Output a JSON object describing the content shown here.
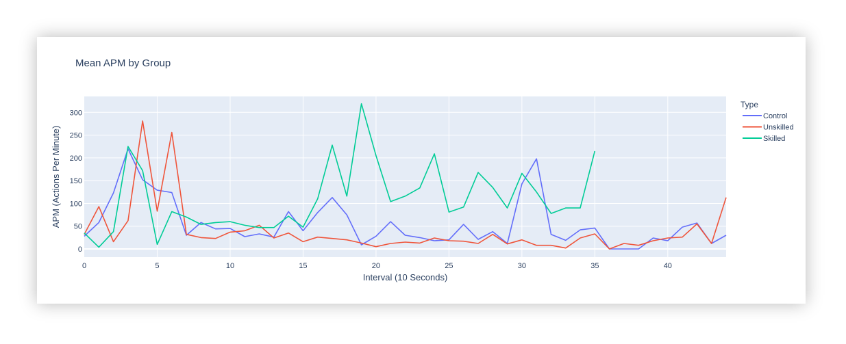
{
  "chart_data": {
    "type": "line",
    "title": "Mean APM by Group",
    "xlabel": "Interval (10 Seconds)",
    "ylabel": "APM (Actions Per Minute)",
    "xlim": [
      0,
      44
    ],
    "ylim": [
      -18,
      335
    ],
    "x_ticks": [
      0,
      5,
      10,
      15,
      20,
      25,
      30,
      35,
      40
    ],
    "y_ticks": [
      0,
      50,
      100,
      150,
      200,
      250,
      300
    ],
    "grid": true,
    "plot_bgcolor": "#e5ecf6",
    "legend": {
      "title": "Type",
      "placement": "top-right, outside plot"
    },
    "series": [
      {
        "name": "Control",
        "color": "#636efa",
        "x": [
          0,
          1,
          2,
          3,
          4,
          5,
          6,
          7,
          8,
          9,
          10,
          11,
          12,
          13,
          14,
          15,
          16,
          17,
          18,
          19,
          20,
          21,
          22,
          23,
          24,
          25,
          26,
          27,
          28,
          29,
          30,
          31,
          32,
          33,
          34,
          35,
          36,
          37,
          38,
          39,
          40,
          41,
          42,
          43,
          44
        ],
        "values": [
          28,
          58,
          123,
          220,
          152,
          129,
          124,
          30,
          58,
          44,
          45,
          27,
          33,
          26,
          82,
          40,
          80,
          113,
          75,
          9,
          28,
          60,
          30,
          25,
          18,
          20,
          54,
          21,
          38,
          12,
          143,
          198,
          32,
          19,
          42,
          46,
          0,
          0,
          0,
          24,
          18,
          48,
          57,
          12,
          30
        ]
      },
      {
        "name": "Unskilled",
        "color": "#ef553b",
        "x": [
          0,
          1,
          2,
          3,
          4,
          5,
          6,
          7,
          8,
          9,
          10,
          11,
          12,
          13,
          14,
          15,
          16,
          17,
          18,
          19,
          20,
          21,
          22,
          23,
          24,
          25,
          26,
          27,
          28,
          29,
          30,
          31,
          32,
          33,
          34,
          35,
          36,
          37,
          38,
          39,
          40,
          41,
          42,
          43,
          44
        ],
        "values": [
          32,
          93,
          16,
          62,
          281,
          83,
          256,
          32,
          25,
          23,
          37,
          40,
          52,
          24,
          35,
          16,
          26,
          23,
          20,
          13,
          5,
          12,
          15,
          13,
          24,
          18,
          17,
          12,
          32,
          11,
          20,
          8,
          8,
          2,
          24,
          33,
          0,
          12,
          8,
          18,
          24,
          26,
          55,
          12,
          113
        ]
      },
      {
        "name": "Skilled",
        "color": "#00cc96",
        "x": [
          0,
          1,
          2,
          3,
          4,
          5,
          6,
          7,
          8,
          9,
          10,
          11,
          12,
          13,
          14,
          15,
          16,
          17,
          18,
          19,
          20,
          21,
          22,
          23,
          24,
          25,
          26,
          27,
          28,
          29,
          30,
          31,
          32,
          33,
          34,
          35
        ],
        "values": [
          35,
          4,
          38,
          225,
          172,
          10,
          82,
          70,
          54,
          58,
          60,
          52,
          47,
          47,
          72,
          48,
          110,
          228,
          116,
          319,
          205,
          104,
          116,
          134,
          209,
          81,
          92,
          168,
          135,
          90,
          166,
          125,
          78,
          90,
          90,
          215
        ]
      }
    ]
  }
}
